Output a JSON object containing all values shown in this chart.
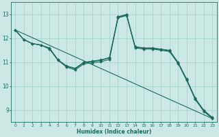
{
  "xlabel": "Humidex (Indice chaleur)",
  "background_color": "#cce8e4",
  "grid_color": "#a8d4cc",
  "line_color": "#1a6b5a",
  "xlim": [
    -0.5,
    23.5
  ],
  "ylim": [
    8.5,
    13.5
  ],
  "yticks": [
    9,
    10,
    11,
    12,
    13
  ],
  "xticks": [
    0,
    1,
    2,
    3,
    4,
    5,
    6,
    7,
    8,
    9,
    10,
    11,
    12,
    13,
    14,
    15,
    16,
    17,
    18,
    19,
    20,
    21,
    22,
    23
  ],
  "series": [
    {
      "x": [
        0,
        1,
        2,
        3,
        4,
        5,
        6,
        7,
        8,
        9,
        10,
        11,
        12,
        13,
        14,
        15,
        16,
        17,
        18,
        19,
        20,
        21,
        22,
        23
      ],
      "y": [
        12.35,
        11.95,
        11.78,
        11.72,
        11.6,
        11.1,
        10.85,
        10.75,
        11.0,
        11.05,
        11.1,
        11.2,
        12.9,
        13.0,
        11.65,
        11.6,
        11.6,
        11.55,
        11.5,
        11.0,
        10.3,
        9.5,
        9.0,
        8.7
      ],
      "marker": true
    },
    {
      "x": [
        0,
        1,
        2,
        3,
        4,
        5,
        6,
        7,
        8,
        9,
        10,
        11,
        12,
        13,
        14,
        15,
        16,
        17,
        18,
        19,
        20,
        21,
        22,
        23
      ],
      "y": [
        12.35,
        11.95,
        11.78,
        11.72,
        11.58,
        11.1,
        10.83,
        10.73,
        10.98,
        11.03,
        11.08,
        11.18,
        12.88,
        12.98,
        11.63,
        11.58,
        11.58,
        11.53,
        11.48,
        10.98,
        10.28,
        9.48,
        8.98,
        8.68
      ],
      "marker": true
    },
    {
      "x": [
        0,
        1,
        2,
        3,
        4,
        5,
        6,
        7,
        8,
        9,
        10,
        11,
        12,
        13,
        14,
        15,
        16,
        17,
        18,
        19,
        20,
        21,
        22,
        23
      ],
      "y": [
        12.35,
        11.95,
        11.78,
        11.72,
        11.55,
        11.08,
        10.8,
        10.68,
        10.93,
        10.98,
        11.02,
        11.12,
        12.85,
        12.95,
        11.6,
        11.55,
        11.55,
        11.5,
        11.45,
        10.95,
        10.25,
        9.45,
        8.95,
        8.65
      ],
      "marker": true
    },
    {
      "x": [
        0,
        23
      ],
      "y": [
        12.35,
        8.65
      ],
      "marker": false
    }
  ]
}
